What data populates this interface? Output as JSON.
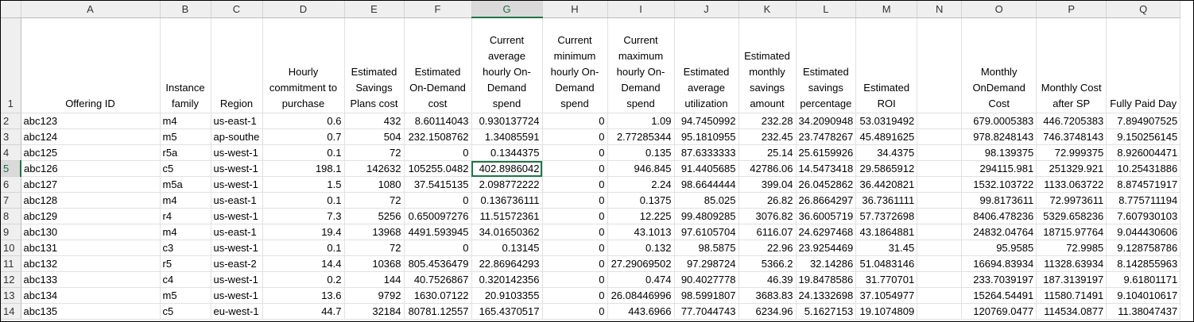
{
  "columns": [
    "A",
    "B",
    "C",
    "D",
    "E",
    "F",
    "G",
    "H",
    "I",
    "J",
    "K",
    "L",
    "M",
    "N",
    "O",
    "P",
    "Q"
  ],
  "selected_column": "G",
  "selected_row": "5",
  "headers": [
    "Offering ID",
    "Instance family",
    "Region",
    "Hourly commitment to purchase",
    "Estimated Savings Plans cost",
    "Estimated On-Demand cost",
    "Current average hourly On-Demand spend",
    "Current minimum hourly On-Demand spend",
    "Current maximum hourly On-Demand spend",
    "Estimated average utilization",
    "Estimated monthly savings amount",
    "Estimated savings percentage",
    "Estimated ROI",
    "",
    "Monthly OnDemand Cost",
    "Monthly Cost after SP",
    "Fully Paid Day"
  ],
  "rows": [
    {
      "n": "2",
      "cells": [
        "abc123",
        "m4",
        "us-east-1",
        "0.6",
        "432",
        "8.60114043",
        "0.930137724",
        "0",
        "1.09",
        "94.7450992",
        "232.28",
        "34.2090948",
        "53.0319492",
        "",
        "679.0005383",
        "446.7205383",
        "7.894907525"
      ]
    },
    {
      "n": "3",
      "cells": [
        "abc124",
        "m5",
        "ap-southe",
        "0.7",
        "504",
        "232.1508762",
        "1.34085591",
        "0",
        "2.77285344",
        "95.1810955",
        "232.45",
        "23.7478267",
        "45.4891625",
        "",
        "978.8248143",
        "746.3748143",
        "9.150256145"
      ]
    },
    {
      "n": "4",
      "cells": [
        "abc125",
        "r5a",
        "us-west-1",
        "0.1",
        "72",
        "0",
        "0.1344375",
        "0",
        "0.135",
        "87.6333333",
        "25.14",
        "25.6159926",
        "34.4375",
        "",
        "98.139375",
        "72.999375",
        "8.926004471"
      ]
    },
    {
      "n": "5",
      "cells": [
        "abc126",
        "c5",
        "us-west-1",
        "198.1",
        "142632",
        "105255.0482",
        "402.8986042",
        "0",
        "946.845",
        "91.4405685",
        "42786.06",
        "14.5473418",
        "29.5865912",
        "",
        "294115.981",
        "251329.921",
        "10.25431886"
      ]
    },
    {
      "n": "6",
      "cells": [
        "abc127",
        "m5a",
        "us-west-1",
        "1.5",
        "1080",
        "37.5415135",
        "2.098772222",
        "0",
        "2.24",
        "98.6644444",
        "399.04",
        "26.0452862",
        "36.4420821",
        "",
        "1532.103722",
        "1133.063722",
        "8.874571917"
      ]
    },
    {
      "n": "7",
      "cells": [
        "abc128",
        "m4",
        "us-east-1",
        "0.1",
        "72",
        "0",
        "0.136736111",
        "0",
        "0.1375",
        "85.025",
        "26.82",
        "26.8664297",
        "36.7361111",
        "",
        "99.8173611",
        "72.9973611",
        "8.775711194"
      ]
    },
    {
      "n": "8",
      "cells": [
        "abc129",
        "r4",
        "us-west-1",
        "7.3",
        "5256",
        "0.650097276",
        "11.51572361",
        "0",
        "12.225",
        "99.4809285",
        "3076.82",
        "36.6005719",
        "57.7372698",
        "",
        "8406.478236",
        "5329.658236",
        "7.607930103"
      ]
    },
    {
      "n": "9",
      "cells": [
        "abc130",
        "m4",
        "us-east-1",
        "19.4",
        "13968",
        "4491.593945",
        "34.01650362",
        "0",
        "43.1013",
        "97.6105704",
        "6116.07",
        "24.6297468",
        "43.1864881",
        "",
        "24832.04764",
        "18715.97764",
        "9.044430606"
      ]
    },
    {
      "n": "10",
      "cells": [
        "abc131",
        "c3",
        "us-west-1",
        "0.1",
        "72",
        "0",
        "0.13145",
        "0",
        "0.132",
        "98.5875",
        "22.96",
        "23.9254469",
        "31.45",
        "",
        "95.9585",
        "72.9985",
        "9.128758786"
      ]
    },
    {
      "n": "11",
      "cells": [
        "abc132",
        "r5",
        "us-east-2",
        "14.4",
        "10368",
        "805.4536479",
        "22.86964293",
        "0",
        "27.29069502",
        "97.298724",
        "5366.2",
        "32.14286",
        "51.0483146",
        "",
        "16694.83934",
        "11328.63934",
        "8.142855963"
      ]
    },
    {
      "n": "12",
      "cells": [
        "abc133",
        "c4",
        "us-west-1",
        "0.2",
        "144",
        "40.7526867",
        "0.320142356",
        "0",
        "0.474",
        "90.4027778",
        "46.39",
        "19.8478586",
        "31.770701",
        "",
        "233.7039197",
        "187.3139197",
        "9.61801171"
      ]
    },
    {
      "n": "13",
      "cells": [
        "abc134",
        "m5",
        "us-west-1",
        "13.6",
        "9792",
        "1630.07122",
        "20.9103355",
        "0",
        "26.08446996",
        "98.5991807",
        "3683.83",
        "24.1332698",
        "37.1054977",
        "",
        "15264.54491",
        "11580.71491",
        "9.104010617"
      ]
    },
    {
      "n": "14",
      "cells": [
        "abc135",
        "c5",
        "eu-west-1",
        "44.7",
        "32184",
        "80781.12557",
        "165.4370517",
        "0",
        "443.6966",
        "77.7044743",
        "6234.96",
        "5.1627153",
        "19.1074809",
        "",
        "120769.0477",
        "114534.0877",
        "11.38047437"
      ]
    }
  ]
}
